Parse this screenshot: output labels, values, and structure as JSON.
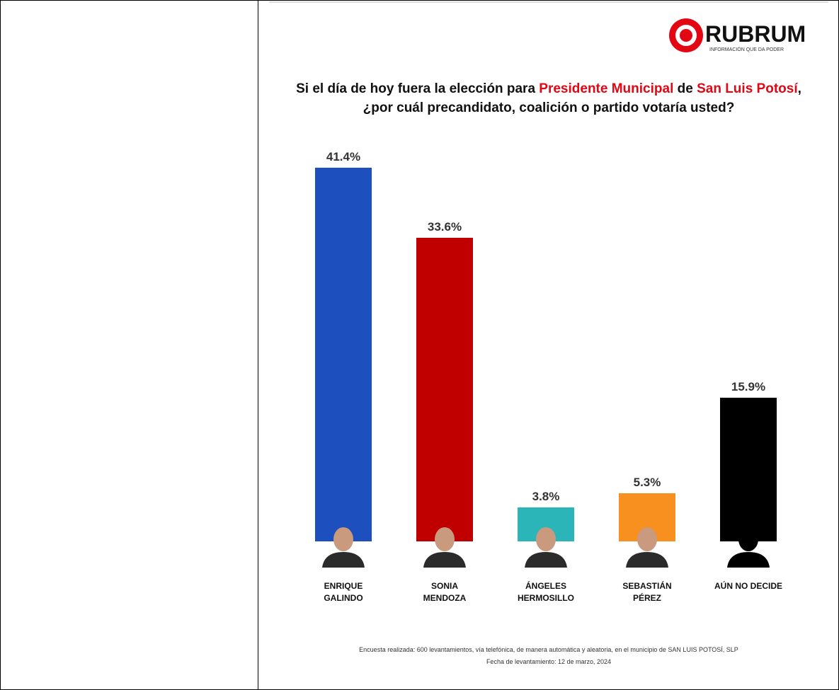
{
  "logo": {
    "name": "RUBRUM",
    "tagline": "INFORMACIÓN QUE DA PODER"
  },
  "chart_data": {
    "type": "bar",
    "title": [
      "Si el día de hoy fuera la elección para ",
      "Presidente Municipal",
      " de ",
      "San Luis Potosí",
      ", ¿por cuál precandidato, coalición o partido votaría usted?"
    ],
    "categories": [
      "ENRIQUE GALINDO",
      "SONIA MENDOZA",
      "ÁNGELES HERMOSILLO",
      "SEBASTIÁN PÉREZ",
      "AÚN NO DECIDE"
    ],
    "values": [
      41.4,
      33.6,
      3.8,
      5.3,
      15.9
    ],
    "value_labels": [
      "41.4%",
      "33.6%",
      "3.8%",
      "5.3%",
      "15.9%"
    ],
    "colors": [
      "#1d4fbf",
      "#c00000",
      "#2bb5b8",
      "#f7901e",
      "#000000"
    ],
    "footnote": [
      "Encuesta realizada: 600 levantamientos, vía telefónica, de manera automática y aleatoria, en el municipio de SAN LUIS POTOSÍ, SLP",
      "Fecha de levantamiento: 12 de marzo, 2024"
    ]
  }
}
